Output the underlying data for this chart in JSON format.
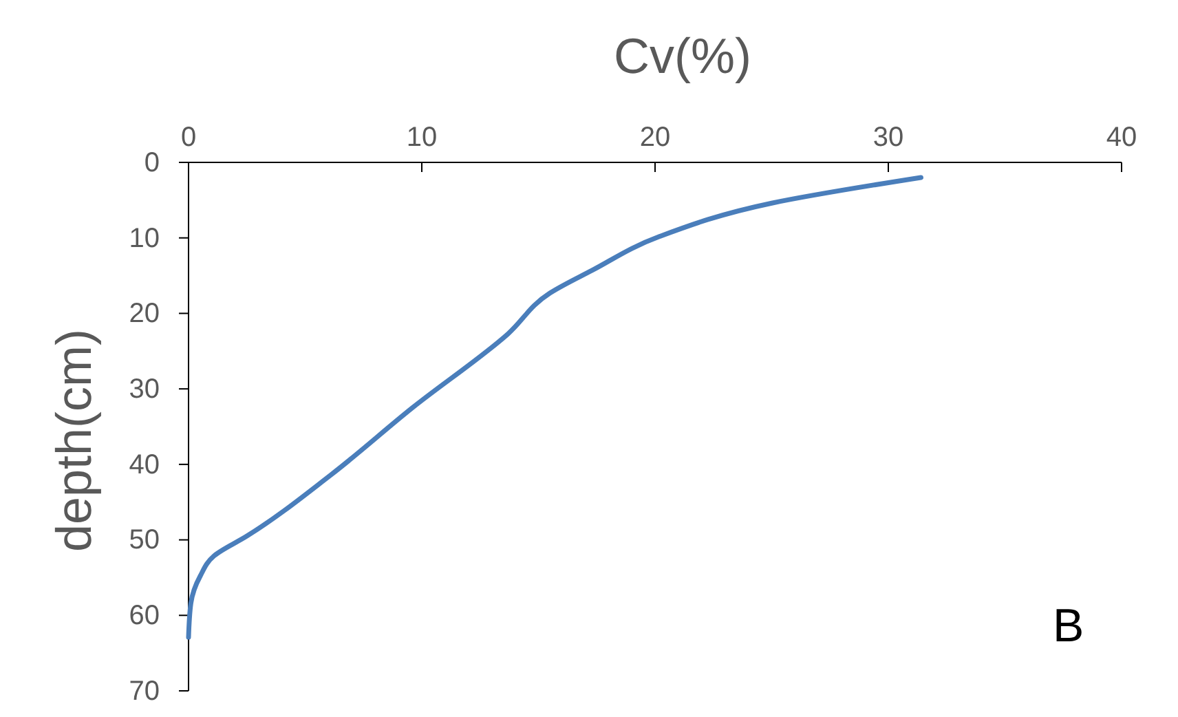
{
  "chart_data": {
    "type": "line",
    "xlabel": "Cv(%)",
    "ylabel": "depth(cm)",
    "annotations": [
      "B"
    ],
    "xlim": [
      0,
      40
    ],
    "xticks": [
      0,
      10,
      20,
      30,
      40
    ],
    "ylim": [
      70,
      0
    ],
    "yticks": [
      0,
      10,
      20,
      30,
      40,
      50,
      60,
      70
    ],
    "grid": false,
    "marker": "none",
    "line_style": "solid",
    "series": [
      {
        "color": "#4a7ebb",
        "x": [
          31.4,
          25,
          20.2,
          17.3,
          15.5,
          13.7,
          9.6,
          6.1,
          2.5,
          1.1,
          0.5,
          0.1,
          0
        ],
        "values": [
          2,
          5.4,
          9.8,
          14.3,
          17.3,
          22.7,
          32.5,
          41.4,
          49.5,
          52.1,
          54.8,
          58.4,
          62.9
        ]
      }
    ]
  }
}
